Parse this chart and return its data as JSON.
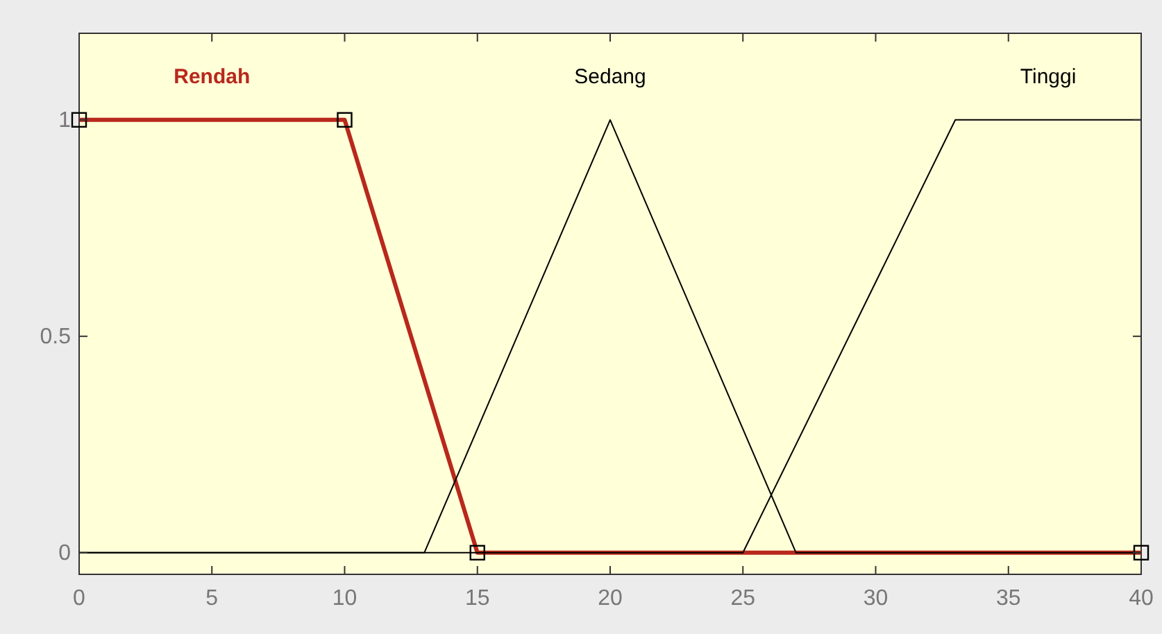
{
  "chart_data": {
    "type": "line",
    "xlim": [
      0,
      40
    ],
    "ylim": [
      -0.05,
      1.2
    ],
    "xticks": [
      0,
      5,
      10,
      15,
      20,
      25,
      30,
      35,
      40
    ],
    "yticks": [
      0,
      0.5,
      1
    ],
    "grid": false,
    "line_style": "solid",
    "series": [
      {
        "name": "Rendah",
        "color": "#b8281c",
        "x": [
          0,
          10,
          15,
          40
        ],
        "values": [
          1,
          1,
          0,
          0
        ],
        "marker": "square"
      },
      {
        "name": "Sedang",
        "color": "#000000",
        "x": [
          0,
          13,
          20,
          27,
          40
        ],
        "values": [
          0,
          0,
          1,
          0,
          0
        ],
        "marker": "none"
      },
      {
        "name": "Tinggi",
        "color": "#000000",
        "x": [
          0,
          25,
          33,
          40
        ],
        "values": [
          0,
          0,
          1,
          1
        ],
        "marker": "none"
      }
    ]
  }
}
